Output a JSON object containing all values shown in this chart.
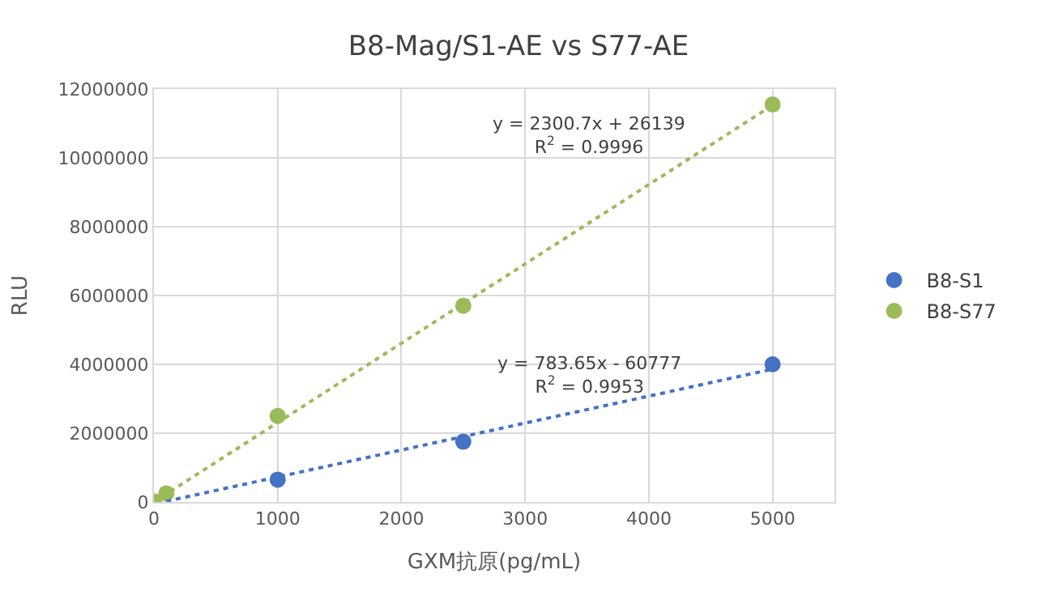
{
  "chart_data": {
    "type": "scatter",
    "title": "B8-Mag/S1-AE vs S77-AE",
    "xlabel": "GXM抗原(pg/mL)",
    "ylabel": "RLU",
    "x": [
      0,
      100,
      1000,
      2500,
      5000
    ],
    "series": [
      {
        "name": "B8-S1",
        "color": "#4472c4",
        "values": [
          null,
          null,
          650000,
          1750000,
          4000000
        ]
      },
      {
        "name": "B8-S77",
        "color": "#9bbb59",
        "values": [
          20000,
          250000,
          2500000,
          5700000,
          11550000
        ]
      },
      {
        "type": "line",
        "color": "#4472c4",
        "x": [
          100,
          5000
        ],
        "values": [
          20000,
          3860000
        ],
        "line_style": "dotted",
        "marker": "none"
      },
      {
        "type": "line",
        "color": "#9bbb59",
        "x": [
          0,
          5000
        ],
        "values": [
          0,
          11530000
        ],
        "line_style": "dotted",
        "marker": "none"
      }
    ],
    "annotations": [
      "y = 2300.7x + 26139\nR$^{2}$ = 0.9996",
      "y = 783.65x - 60777\nR$^{2}$ = 0.9953"
    ],
    "xlim": [
      0,
      5500
    ],
    "xticks": [
      0,
      1000,
      2000,
      3000,
      4000,
      5000
    ],
    "ylim": [
      0,
      12000000
    ],
    "yticks": [
      0,
      2000000,
      4000000,
      6000000,
      8000000,
      10000000,
      12000000
    ],
    "grid": true,
    "legend": "right",
    "marker": "circle"
  }
}
